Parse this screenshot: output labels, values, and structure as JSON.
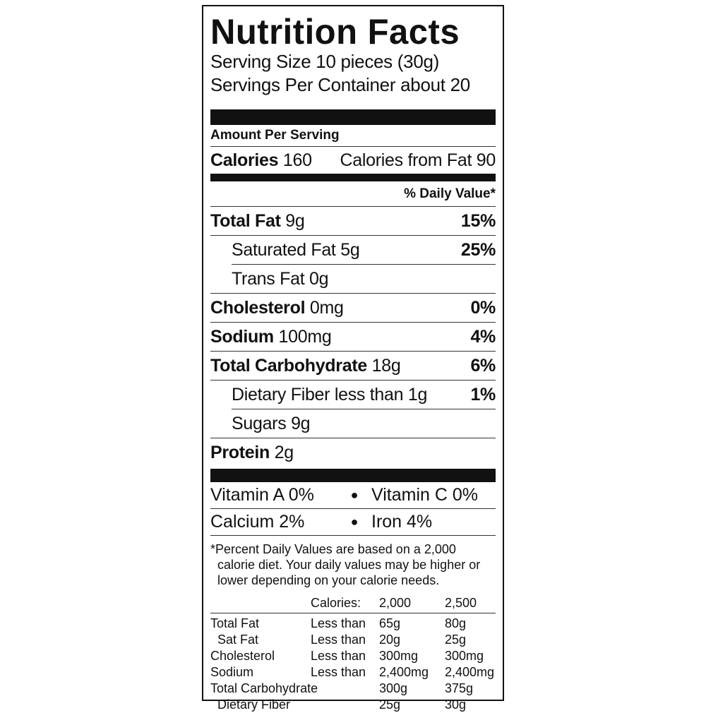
{
  "title": "Nutrition Facts",
  "serving_size": "Serving Size 10 pieces (30g)",
  "servings_per_container": "Servings Per Container about 20",
  "amount_per_serving": "Amount Per Serving",
  "calories": {
    "label": "Calories",
    "value": "160",
    "from_fat": "Calories from Fat 90"
  },
  "daily_value_header": "% Daily Value*",
  "nutrients": [
    {
      "label": "Total Fat",
      "amount": "9g",
      "dv": "15%"
    },
    {
      "label": "Saturated Fat",
      "amount": "5g",
      "dv": "25%"
    },
    {
      "label": "Trans Fat",
      "amount": "0g",
      "dv": ""
    },
    {
      "label": "Cholesterol",
      "amount": "0mg",
      "dv": "0%"
    },
    {
      "label": "Sodium",
      "amount": "100mg",
      "dv": "4%"
    },
    {
      "label": "Total Carbohydrate",
      "amount": "18g",
      "dv": "6%"
    },
    {
      "label": "Dietary Fiber",
      "amount": "less than 1g",
      "dv": "1%"
    },
    {
      "label": "Sugars",
      "amount": "9g",
      "dv": ""
    },
    {
      "label": "Protein",
      "amount": "2g",
      "dv": ""
    }
  ],
  "vitamins": [
    [
      "Vitamin A 0%",
      "Vitamin C 0%"
    ],
    [
      "Calcium 2%",
      "Iron 4%"
    ]
  ],
  "footnote": [
    "*Percent Daily Values are based on a 2,000",
    "calorie diet. Your daily values may be higher or",
    "lower depending on your calorie needs."
  ],
  "reference_table": {
    "header": [
      "",
      "Calories:",
      "2,000",
      "2,500"
    ],
    "rows": [
      [
        "Total Fat",
        "Less than",
        "65g",
        "80g"
      ],
      [
        "Sat Fat",
        "Less than",
        "20g",
        "25g"
      ],
      [
        "Cholesterol",
        "Less than",
        "300mg",
        "300mg"
      ],
      [
        "Sodium",
        "Less than",
        "2,400mg",
        "2,400mg"
      ],
      [
        "Total Carbohydrate",
        "",
        "300g",
        "375g"
      ],
      [
        "Dietary Fiber",
        "",
        "25g",
        "30g"
      ]
    ]
  }
}
